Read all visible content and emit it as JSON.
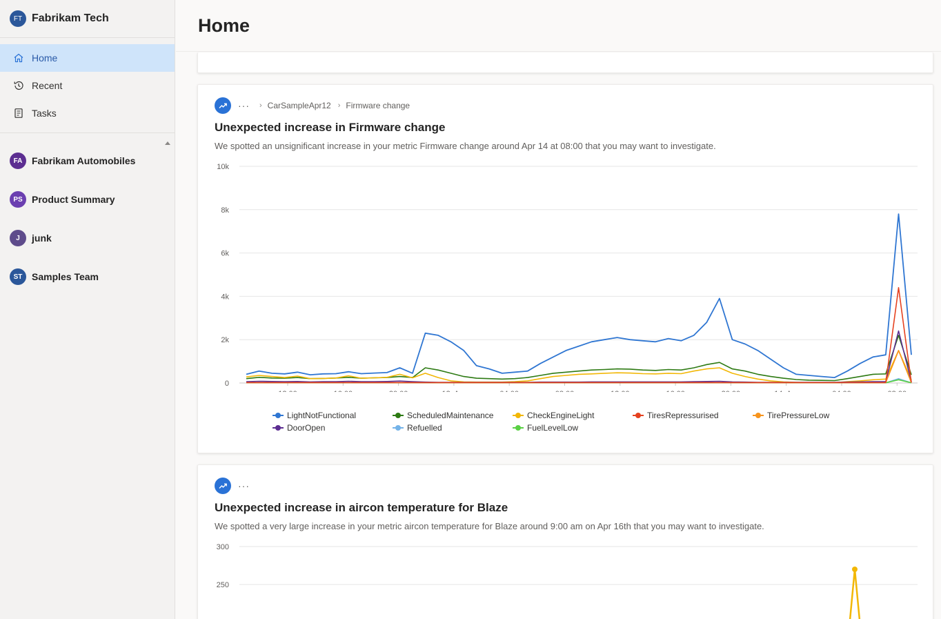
{
  "org": {
    "initials": "FT",
    "name": "Fabrikam Tech",
    "color": "#2b579a"
  },
  "nav": [
    {
      "label": "Home",
      "icon": "home-icon",
      "active": true
    },
    {
      "label": "Recent",
      "icon": "recent-icon",
      "active": false
    },
    {
      "label": "Tasks",
      "icon": "tasks-icon",
      "active": false
    }
  ],
  "workspaces": [
    {
      "initials": "FA",
      "name": "Fabrikam Automobiles",
      "color": "#5c2e91"
    },
    {
      "initials": "PS",
      "name": "Product Summary",
      "color": "#6b3fb0"
    },
    {
      "initials": "J",
      "name": "junk",
      "color": "#5e4b8b"
    },
    {
      "initials": "ST",
      "name": "Samples Team",
      "color": "#2b579a"
    }
  ],
  "header": {
    "title": "Home"
  },
  "cards": [
    {
      "breadcrumb": [
        "CarSampleApr12",
        "Firmware change"
      ],
      "title": "Unexpected increase in Firmware change",
      "description": "We spotted an unsignificant increase in your metric Firmware change around Apr 14 at 08:00 that you may want to investigate."
    },
    {
      "breadcrumb": [],
      "title": "Unexpected increase in aircon temperature for Blaze",
      "description": "We spotted a very large increase in your metric aircon temperature for Blaze around 9:00 am on Apr 16th that you may want to investigate."
    }
  ],
  "chart_data": [
    {
      "type": "line",
      "title": "",
      "xlabel": "",
      "ylabel": "",
      "x_ticks": [
        "12:00",
        "16:00",
        "20:00",
        "13. Apr",
        "04:00",
        "08:00",
        "12:00",
        "16:00",
        "20:00",
        "14. Apr",
        "04:00",
        "08:00"
      ],
      "y_ticks": [
        "0",
        "2k",
        "4k",
        "6k",
        "8k",
        "10k"
      ],
      "ylim": [
        0,
        10000
      ],
      "grid": true,
      "legend": "bottom",
      "series": [
        {
          "name": "LightNotFunctional",
          "color": "#2f76d2",
          "values": [
            400,
            550,
            450,
            420,
            500,
            380,
            420,
            430,
            520,
            430,
            460,
            480,
            700,
            450,
            2300,
            2200,
            1900,
            1500,
            800,
            650,
            450,
            500,
            550,
            900,
            1200,
            1500,
            1700,
            1900,
            2000,
            2100,
            2000,
            1950,
            1900,
            2050,
            1950,
            2200,
            2800,
            3900,
            2000,
            1800,
            1500,
            1100,
            700,
            400,
            350,
            300,
            250,
            550,
            900,
            1200,
            1300,
            7800,
            1300
          ]
        },
        {
          "name": "ScheduledMaintenance",
          "color": "#2d7a13",
          "values": [
            200,
            260,
            230,
            220,
            250,
            200,
            210,
            230,
            260,
            220,
            240,
            250,
            300,
            250,
            700,
            600,
            450,
            300,
            220,
            200,
            180,
            200,
            250,
            350,
            450,
            500,
            550,
            600,
            620,
            650,
            640,
            600,
            580,
            620,
            600,
            700,
            850,
            950,
            650,
            550,
            400,
            300,
            220,
            160,
            130,
            120,
            110,
            200,
            300,
            400,
            420,
            2200,
            380
          ]
        },
        {
          "name": "CheckEngineLight",
          "color": "#f2b705",
          "values": [
            280,
            350,
            300,
            250,
            320,
            200,
            210,
            230,
            330,
            220,
            240,
            260,
            400,
            240,
            450,
            250,
            100,
            50,
            40,
            40,
            40,
            60,
            100,
            200,
            300,
            350,
            400,
            420,
            450,
            470,
            460,
            430,
            420,
            450,
            430,
            550,
            650,
            700,
            450,
            300,
            180,
            100,
            50,
            30,
            20,
            20,
            20,
            60,
            100,
            150,
            180,
            1500,
            150
          ]
        },
        {
          "name": "TiresRepressurised",
          "color": "#e5411f",
          "values": [
            20,
            20,
            20,
            20,
            20,
            20,
            20,
            20,
            20,
            20,
            20,
            20,
            20,
            20,
            20,
            20,
            20,
            20,
            20,
            20,
            20,
            20,
            20,
            20,
            20,
            20,
            20,
            20,
            20,
            20,
            20,
            20,
            20,
            20,
            20,
            20,
            20,
            20,
            20,
            20,
            20,
            20,
            20,
            20,
            20,
            20,
            20,
            20,
            20,
            20,
            20,
            4400,
            20
          ]
        },
        {
          "name": "TirePressureLow",
          "color": "#f7941d",
          "values": [
            15,
            15,
            15,
            15,
            15,
            15,
            15,
            15,
            15,
            15,
            15,
            15,
            15,
            15,
            15,
            15,
            15,
            15,
            15,
            15,
            15,
            15,
            15,
            15,
            15,
            15,
            15,
            15,
            15,
            15,
            15,
            15,
            15,
            15,
            15,
            15,
            15,
            15,
            15,
            15,
            15,
            15,
            15,
            15,
            15,
            15,
            15,
            15,
            15,
            15,
            15,
            1500,
            15
          ]
        },
        {
          "name": "DoorOpen",
          "color": "#5c2d91",
          "values": [
            60,
            80,
            70,
            60,
            70,
            50,
            60,
            60,
            80,
            60,
            60,
            70,
            90,
            60,
            40,
            30,
            30,
            30,
            30,
            30,
            30,
            30,
            30,
            40,
            40,
            40,
            40,
            50,
            50,
            50,
            50,
            50,
            50,
            50,
            50,
            60,
            70,
            80,
            50,
            40,
            30,
            30,
            30,
            30,
            30,
            30,
            30,
            40,
            50,
            60,
            60,
            2400,
            60
          ]
        },
        {
          "name": "Refuelled",
          "color": "#74b3e8",
          "values": [
            10,
            10,
            10,
            10,
            10,
            10,
            10,
            10,
            10,
            10,
            10,
            10,
            10,
            10,
            10,
            10,
            10,
            10,
            10,
            10,
            10,
            10,
            10,
            10,
            10,
            10,
            10,
            10,
            10,
            10,
            10,
            10,
            10,
            10,
            10,
            10,
            10,
            10,
            10,
            10,
            10,
            10,
            10,
            10,
            10,
            10,
            10,
            10,
            10,
            10,
            10,
            200,
            10
          ]
        },
        {
          "name": "FuelLevelLow",
          "color": "#5ad044",
          "values": [
            8,
            8,
            8,
            8,
            8,
            8,
            8,
            8,
            8,
            8,
            8,
            8,
            8,
            8,
            8,
            8,
            8,
            8,
            8,
            8,
            8,
            8,
            8,
            8,
            8,
            8,
            8,
            8,
            8,
            8,
            8,
            8,
            8,
            8,
            8,
            8,
            8,
            8,
            8,
            8,
            8,
            8,
            8,
            8,
            8,
            8,
            8,
            8,
            8,
            8,
            8,
            150,
            8
          ]
        }
      ]
    },
    {
      "type": "line",
      "title": "",
      "xlabel": "",
      "ylabel": "",
      "y_ticks": [
        "250",
        "300"
      ],
      "ylim": [
        200,
        300
      ],
      "grid": true,
      "series": [
        {
          "name": "",
          "color": "#f2b705",
          "visible_peak": 270
        }
      ]
    }
  ]
}
